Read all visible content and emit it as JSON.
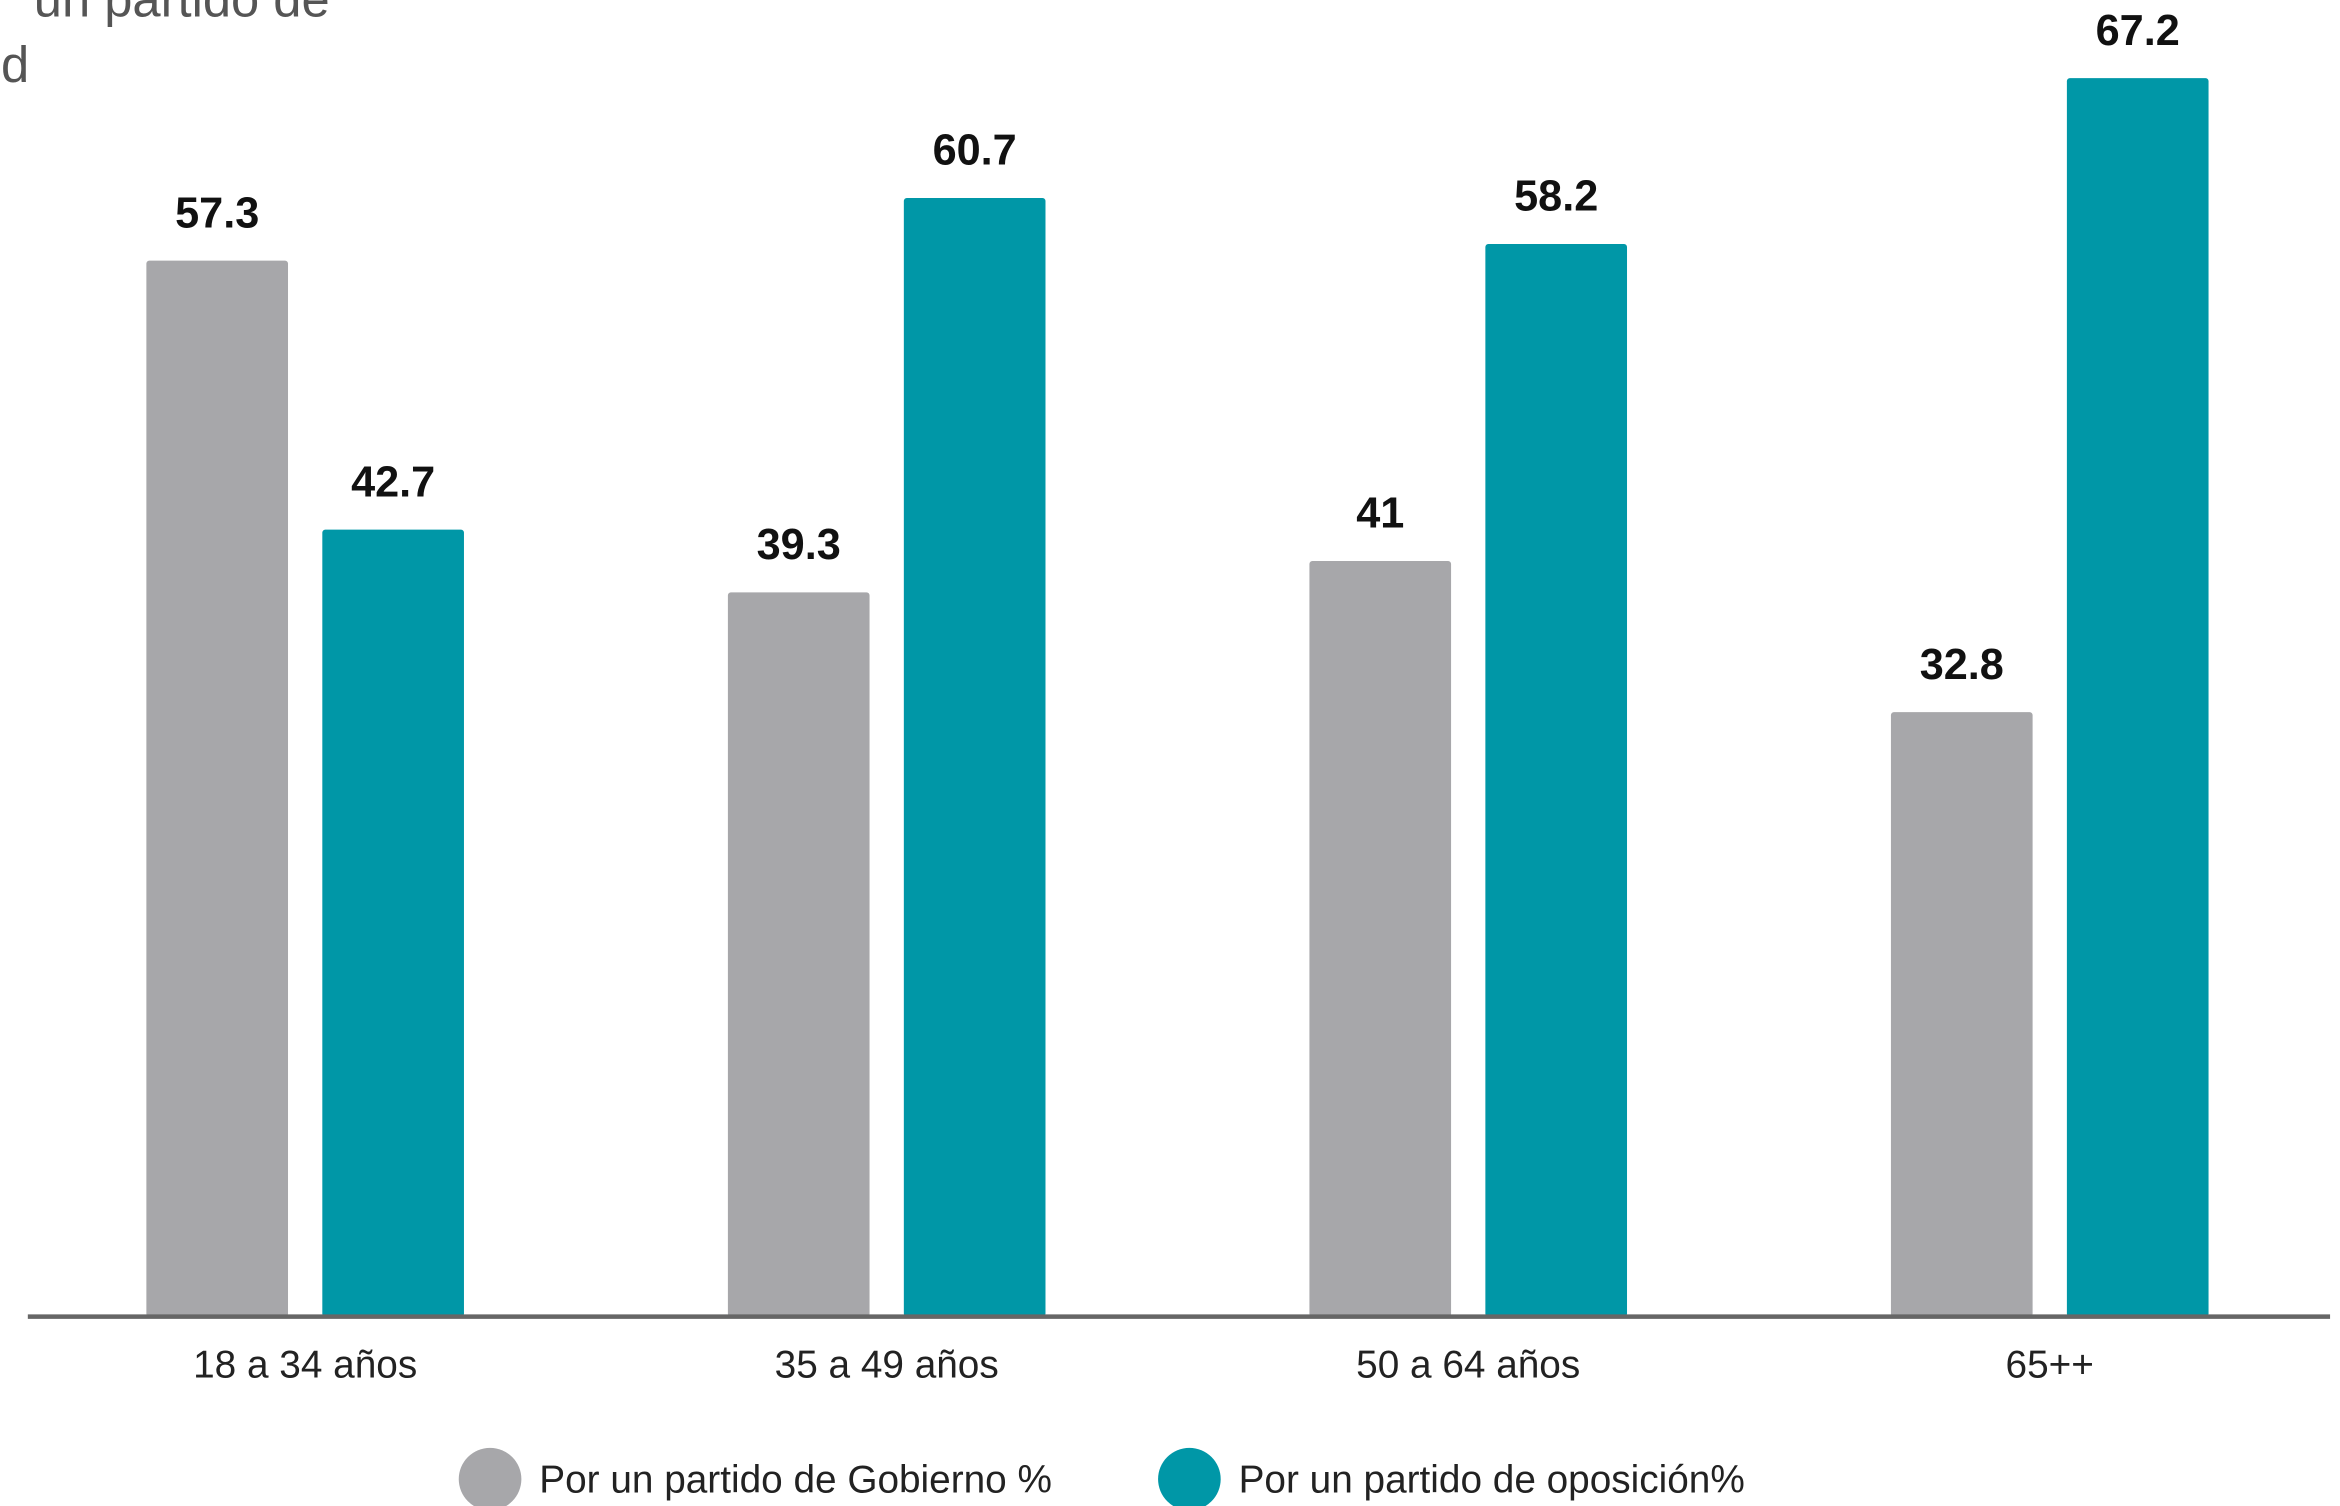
{
  "chart_data": {
    "type": "bar",
    "title_lines": [
      "un partido de",
      "d"
    ],
    "categories": [
      "18 a 34 años",
      "35 a 49 años",
      "50 a 64 años",
      "65++"
    ],
    "series": [
      {
        "name": "Por un partido de Gobierno %",
        "color": "#a7a7aa",
        "values": [
          57.3,
          39.3,
          41,
          32.8
        ]
      },
      {
        "name": "Por un partido de oposición%",
        "color": "#0097a7",
        "values": [
          42.7,
          60.7,
          58.2,
          67.2
        ]
      }
    ],
    "ylim": [
      0,
      71.5
    ],
    "legend": "bottom"
  }
}
